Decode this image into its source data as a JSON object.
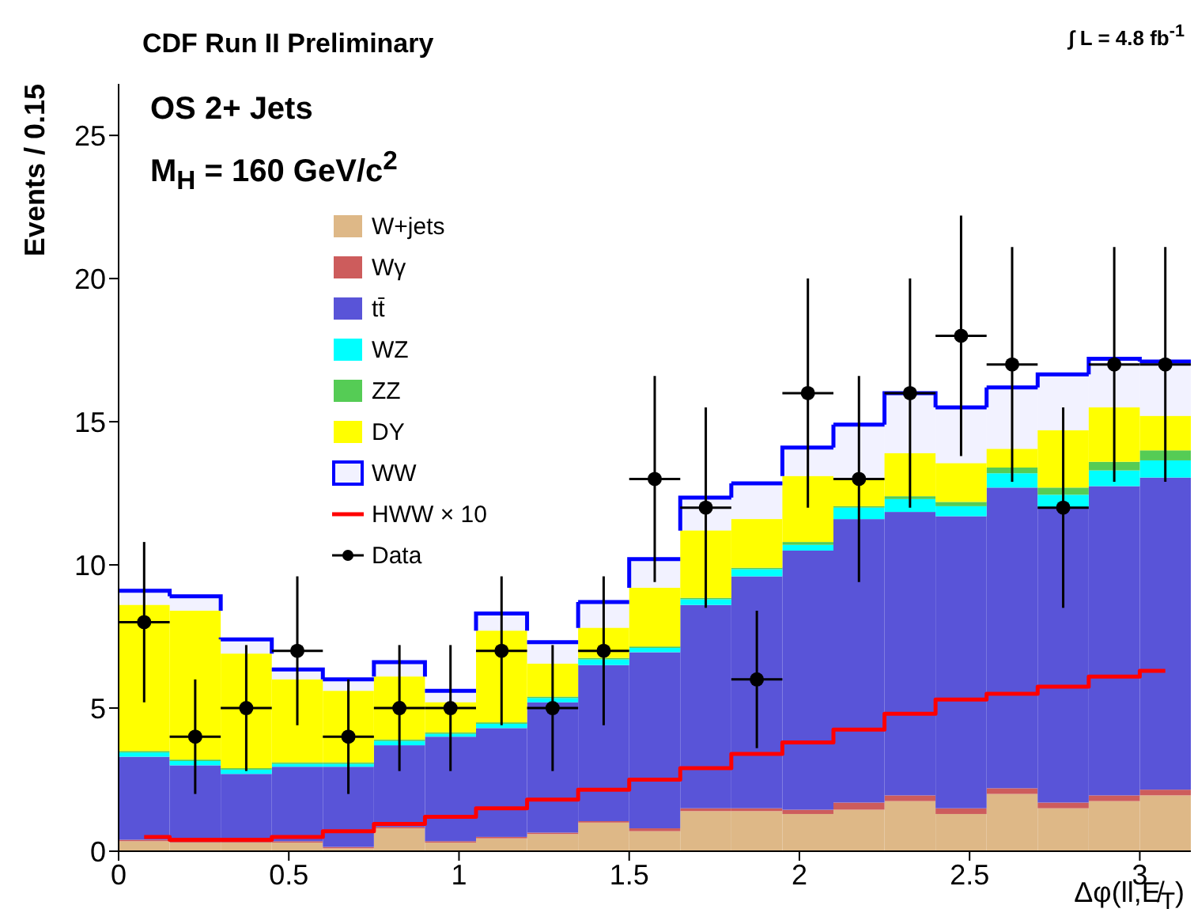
{
  "chart_data": {
    "type": "bar",
    "title": "CDF Run II Preliminary",
    "xlabel": "Δφ(ll,E̸$_{T}$)",
    "ylabel": "Events / 0.15",
    "annotations": [
      "OS 2+ Jets",
      "M$_{H}$ = 160 GeV/c$^{2}$",
      "∫ L = 4.8 fb$^{-1}$"
    ],
    "x": [
      0.075,
      0.225,
      0.375,
      0.525,
      0.675,
      0.825,
      0.975,
      1.125,
      1.275,
      1.425,
      1.575,
      1.725,
      1.875,
      2.025,
      2.175,
      2.325,
      2.475,
      2.625,
      2.775,
      2.925,
      3.075
    ],
    "stacked": true,
    "series": [
      {
        "name": "W+jets",
        "color": "#deb887",
        "values": [
          0.35,
          0.3,
          0.3,
          0.3,
          0.1,
          0.8,
          0.3,
          0.45,
          0.6,
          1.0,
          0.7,
          1.4,
          1.4,
          1.3,
          1.45,
          1.75,
          1.3,
          2.0,
          1.5,
          1.75,
          1.95
        ]
      },
      {
        "name": "Wγ",
        "color": "#cd5c5c",
        "values": [
          0.05,
          0.05,
          0.05,
          0.05,
          0.05,
          0.05,
          0.05,
          0.05,
          0.05,
          0.05,
          0.1,
          0.1,
          0.1,
          0.15,
          0.25,
          0.2,
          0.2,
          0.2,
          0.2,
          0.2,
          0.2
        ]
      },
      {
        "name": "tt̄",
        "color": "#5954d8",
        "values": [
          2.9,
          2.65,
          2.35,
          2.6,
          2.8,
          2.85,
          3.65,
          3.8,
          4.55,
          5.45,
          6.15,
          7.1,
          8.1,
          9.05,
          9.9,
          9.9,
          10.2,
          10.5,
          10.3,
          10.8,
          10.9
        ]
      },
      {
        "name": "WZ",
        "color": "#00ffff",
        "values": [
          0.15,
          0.15,
          0.15,
          0.1,
          0.1,
          0.15,
          0.1,
          0.15,
          0.15,
          0.2,
          0.15,
          0.2,
          0.25,
          0.2,
          0.4,
          0.45,
          0.35,
          0.5,
          0.45,
          0.55,
          0.6
        ]
      },
      {
        "name": "ZZ",
        "color": "#55cc55",
        "values": [
          0.05,
          0.05,
          0.05,
          0.05,
          0.05,
          0.05,
          0.05,
          0.05,
          0.05,
          0.05,
          0.05,
          0.05,
          0.05,
          0.1,
          0.05,
          0.1,
          0.15,
          0.2,
          0.25,
          0.3,
          0.35
        ]
      },
      {
        "name": "DY",
        "color": "#ffff00",
        "values": [
          5.1,
          5.2,
          4.0,
          2.9,
          2.5,
          2.2,
          1.05,
          3.2,
          1.15,
          1.05,
          2.05,
          2.35,
          1.7,
          2.3,
          0.95,
          1.5,
          1.35,
          0.65,
          2.0,
          1.9,
          1.2
        ]
      },
      {
        "name": "WW",
        "color": "#0000ff",
        "values": [
          0.5,
          0.5,
          0.5,
          0.35,
          0.4,
          0.5,
          0.4,
          0.6,
          0.75,
          0.9,
          1.0,
          1.15,
          1.25,
          1.0,
          1.9,
          2.1,
          1.95,
          2.15,
          1.95,
          1.7,
          1.9
        ]
      },
      {
        "name": "HWW × 10",
        "type": "step",
        "color": "#ff0000",
        "values": [
          0.5,
          0.4,
          0.4,
          0.5,
          0.7,
          0.95,
          1.2,
          1.5,
          1.8,
          2.15,
          2.5,
          2.9,
          3.4,
          3.8,
          4.25,
          4.8,
          5.3,
          5.5,
          5.75,
          6.1,
          6.3
        ]
      },
      {
        "name": "Data",
        "type": "scatter",
        "color": "#000000",
        "marker": "circle",
        "values": [
          8,
          4,
          5,
          7,
          4,
          5,
          5,
          7,
          5,
          7,
          13,
          12,
          6,
          16,
          13,
          16,
          18,
          17,
          12,
          17,
          17
        ],
        "errors": [
          2.8,
          2,
          2.2,
          2.6,
          2,
          2.2,
          2.2,
          2.6,
          2.2,
          2.6,
          3.6,
          3.5,
          2.4,
          4,
          3.6,
          4,
          4.2,
          4.1,
          3.5,
          4.1,
          4.1
        ],
        "xerrors": [
          0.075,
          0.075,
          0.075,
          0.075,
          0.075,
          0.075,
          0.075,
          0.075,
          0.075,
          0.075,
          0.075,
          0.075,
          0.075,
          0.075,
          0.075,
          0.075,
          0.075,
          0.075,
          0.075,
          0.075,
          0.075
        ]
      }
    ],
    "legend": "top left",
    "xlim": [
      0,
      3.15
    ],
    "xticks": [
      0,
      0.5,
      1,
      1.5,
      2,
      2.5,
      3
    ],
    "ylim": [
      0,
      26.8
    ],
    "yticks": [
      0,
      5,
      10,
      15,
      20,
      25
    ]
  }
}
